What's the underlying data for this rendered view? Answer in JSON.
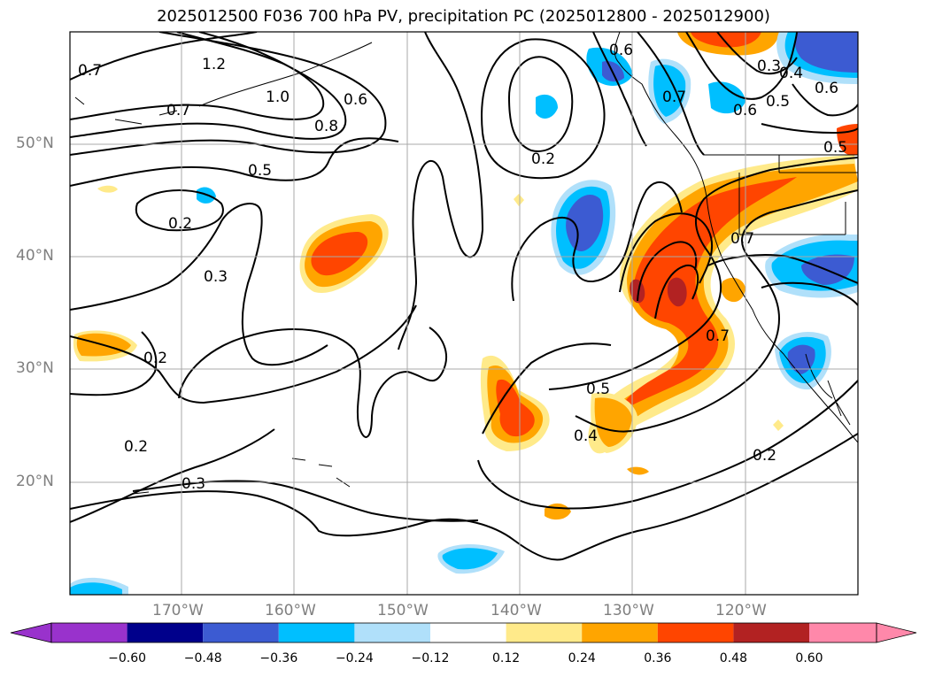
{
  "title": "2025012500 F036 700 hPa PV, precipitation PC (2025012800 - 2025012900)",
  "map": {
    "lat_labels": [
      "50°N",
      "40°N",
      "30°N",
      "20°N"
    ],
    "lon_labels": [
      "170°W",
      "160°W",
      "150°W",
      "140°W",
      "130°W",
      "120°W"
    ],
    "contour_labels": [
      "0.7",
      "1.2",
      "1.0",
      "0.7",
      "0.8",
      "0.6",
      "0.5",
      "0.2",
      "0.3",
      "0.2",
      "0.2",
      "0.3",
      "0.2",
      "0.6",
      "0.3",
      "0.4",
      "0.5",
      "0.6",
      "0.5",
      "0.7",
      "0.7",
      "0.6",
      "0.5",
      "0.4",
      "0.2",
      "0.7"
    ],
    "grid": true
  },
  "colorbar": {
    "ticks": [
      "−0.60",
      "−0.48",
      "−0.36",
      "−0.24",
      "−0.12",
      "0.12",
      "0.24",
      "0.36",
      "0.48",
      "0.60"
    ],
    "colors": [
      "#9932cc",
      "#00008b",
      "#3c5bd2",
      "#00bfff",
      "#b0e0fa",
      "#ffffff",
      "#ffea8a",
      "#ffa500",
      "#ff4500",
      "#b22222",
      "#ff88aa"
    ]
  }
}
